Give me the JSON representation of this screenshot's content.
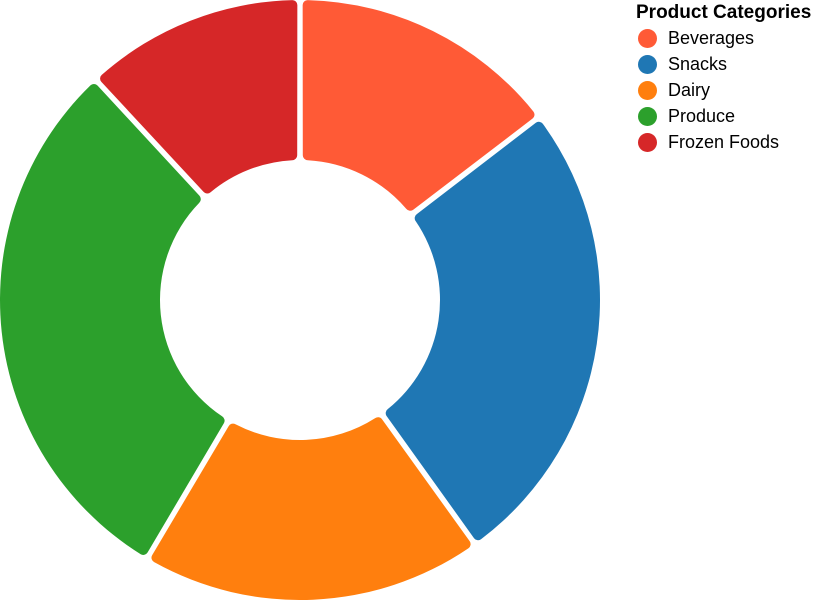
{
  "chart_data": {
    "type": "pie",
    "variant": "donut",
    "legend_title": "Product Categories",
    "legend_position": "top-right",
    "categories": [
      "Beverages",
      "Snacks",
      "Dairy",
      "Produce",
      "Frozen Foods"
    ],
    "values": [
      14.6,
      25.5,
      18.4,
      29.6,
      11.9
    ],
    "colors": [
      "#ff5a36",
      "#1f77b4",
      "#ff7f0e",
      "#2ca02c",
      "#d62728"
    ]
  }
}
